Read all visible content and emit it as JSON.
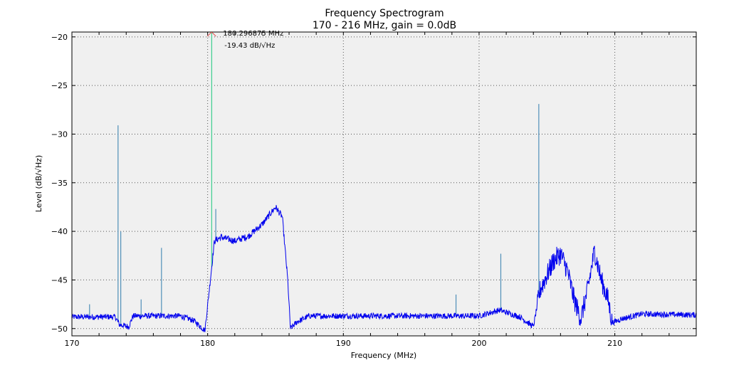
{
  "chart_data": {
    "type": "line",
    "title": "Frequency Spectrogram",
    "subtitle": "170 - 216 MHz, gain = 0.0dB",
    "xlabel": "Frequency (MHz)",
    "ylabel": "Level (dB/√Hz)",
    "xlim": [
      170,
      216
    ],
    "ylim": [
      -50.75,
      -19.5
    ],
    "xticks": [
      170,
      180,
      190,
      200,
      210
    ],
    "yticks": [
      -20,
      -25,
      -30,
      -35,
      -40,
      -45,
      -50
    ],
    "grid": true,
    "background": "#f0f0f0",
    "trace_color": "#0000ee",
    "band_color": "#0a5fd0",
    "spike_color": "#4f8fb8",
    "peak_color": "#3ccf8e",
    "envelope": [
      [
        170,
        -48.8
      ],
      [
        173.2,
        -48.8
      ],
      [
        173.5,
        -49.6
      ],
      [
        174.2,
        -49.8
      ],
      [
        174.5,
        -48.7
      ],
      [
        178,
        -48.7
      ],
      [
        179,
        -49.2
      ],
      [
        179.8,
        -50.2
      ],
      [
        180.2,
        -45
      ],
      [
        180.5,
        -41
      ],
      [
        181,
        -40.6
      ],
      [
        182,
        -41
      ],
      [
        183,
        -40.5
      ],
      [
        184,
        -39.3
      ],
      [
        185,
        -37.5
      ],
      [
        185.5,
        -38.5
      ],
      [
        185.9,
        -45
      ],
      [
        186.1,
        -50
      ],
      [
        186.6,
        -49.3
      ],
      [
        187.5,
        -48.7
      ],
      [
        200,
        -48.7
      ],
      [
        201.5,
        -48.1
      ],
      [
        203,
        -48.8
      ],
      [
        204,
        -49.8
      ],
      [
        204.5,
        -46
      ],
      [
        205.5,
        -43
      ],
      [
        206,
        -42.3
      ],
      [
        206.5,
        -44
      ],
      [
        207,
        -47
      ],
      [
        207.5,
        -49
      ],
      [
        208,
        -46
      ],
      [
        208.5,
        -42
      ],
      [
        209,
        -45
      ],
      [
        209.5,
        -47
      ],
      [
        209.8,
        -49.4
      ],
      [
        210.5,
        -49
      ],
      [
        212,
        -48.5
      ],
      [
        216,
        -48.6
      ]
    ],
    "spikes": [
      [
        171.3,
        -47.5
      ],
      [
        173.4,
        -29.1
      ],
      [
        173.6,
        -40
      ],
      [
        175.1,
        -47
      ],
      [
        176.6,
        -41.7
      ],
      [
        180.3,
        -19.43
      ],
      [
        180.6,
        -37.7
      ],
      [
        198.3,
        -46.5
      ],
      [
        201.6,
        -42.3
      ],
      [
        204.4,
        -26.9
      ]
    ],
    "peak": {
      "freq": 180.296875,
      "level": -19.43,
      "freq_label": "180.296875 MHz",
      "level_label": "-19.43 dB/√Hz"
    }
  }
}
